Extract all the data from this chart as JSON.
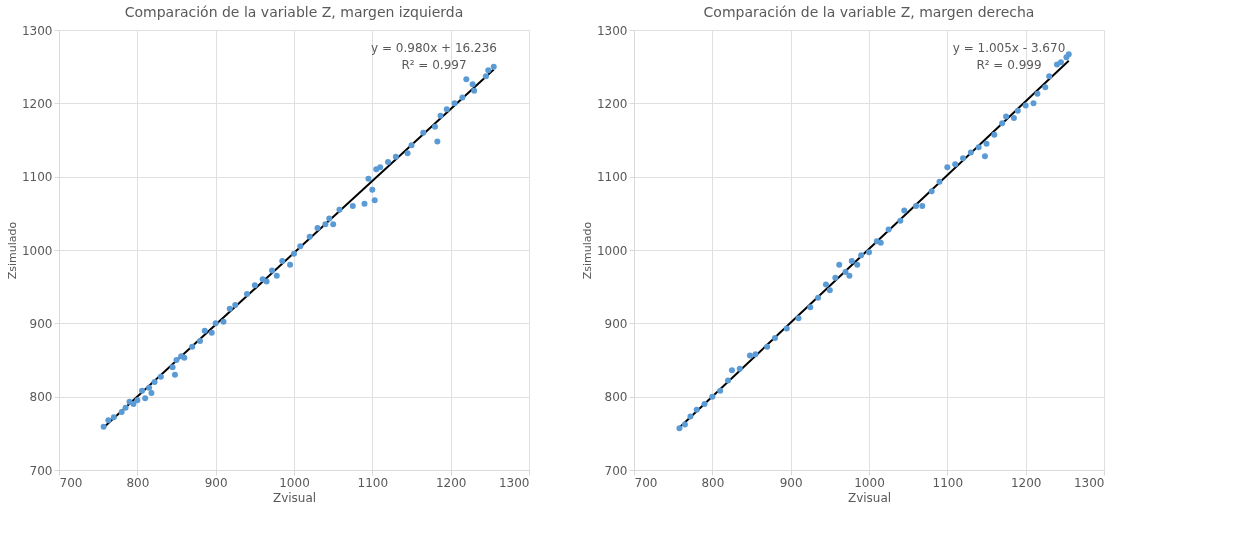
{
  "chart_data": [
    {
      "type": "scatter",
      "title": "Comparación de la variable Z, margen izquierda",
      "xlabel": "Zvisual",
      "ylabel": "Zsimulado",
      "xlim": [
        700,
        1300
      ],
      "xticks": [
        700,
        800,
        900,
        1000,
        1100,
        1200,
        1300
      ],
      "ylim": [
        700,
        1300
      ],
      "yticks": [
        700,
        800,
        900,
        1000,
        1100,
        1200,
        1300
      ],
      "grid": true,
      "marker": "circle",
      "annotations": [
        "y = 0.980x + 16.236",
        "R² = 0.997"
      ],
      "series": [
        {
          "color": "#5b9bd5",
          "x": [
            757,
            763,
            770,
            780,
            785,
            790,
            795,
            800,
            806,
            810,
            815,
            818,
            822,
            830,
            845,
            848,
            850,
            856,
            860,
            870,
            880,
            886,
            895,
            900,
            910,
            918,
            925,
            940,
            950,
            960,
            965,
            972,
            978,
            985,
            995,
            1000,
            1008,
            1020,
            1030,
            1040,
            1045,
            1050,
            1058,
            1075,
            1090,
            1095,
            1100,
            1103,
            1105,
            1110,
            1120,
            1130,
            1145,
            1150,
            1165,
            1180,
            1183,
            1187,
            1195,
            1205,
            1215,
            1220,
            1228,
            1230,
            1245,
            1248,
            1255
          ],
          "values": [
            759,
            768,
            772,
            779,
            785,
            793,
            790,
            795,
            808,
            798,
            812,
            805,
            820,
            827,
            840,
            830,
            850,
            855,
            853,
            868,
            876,
            890,
            887,
            900,
            902,
            920,
            925,
            940,
            952,
            960,
            957,
            972,
            965,
            985,
            980,
            995,
            1005,
            1018,
            1030,
            1035,
            1043,
            1035,
            1055,
            1060,
            1063,
            1097,
            1082,
            1068,
            1110,
            1113,
            1120,
            1127,
            1132,
            1143,
            1160,
            1168,
            1148,
            1183,
            1192,
            1200,
            1208,
            1233,
            1226,
            1217,
            1237,
            1245,
            1250
          ]
        },
        {
          "type": "line",
          "marker": "none",
          "color": "#000000",
          "x": [
            757,
            1255
          ],
          "values": [
            758,
            1246
          ]
        }
      ]
    },
    {
      "type": "scatter",
      "title": "Comparación de la variable Z, margen derecha",
      "xlabel": "Zvisual",
      "ylabel": "Zsimulado",
      "xlim": [
        700,
        1300
      ],
      "xticks": [
        700,
        800,
        900,
        1000,
        1100,
        1200,
        1300
      ],
      "ylim": [
        700,
        1300
      ],
      "yticks": [
        700,
        800,
        900,
        1000,
        1100,
        1200,
        1300
      ],
      "grid": true,
      "marker": "circle",
      "annotations": [
        "y = 1.005x - 3.670",
        "R² = 0.999"
      ],
      "series": [
        {
          "color": "#5b9bd5",
          "x": [
            758,
            765,
            772,
            780,
            790,
            800,
            810,
            820,
            825,
            835,
            848,
            855,
            870,
            880,
            895,
            910,
            925,
            935,
            945,
            950,
            957,
            962,
            970,
            975,
            978,
            985,
            990,
            1000,
            1010,
            1015,
            1025,
            1040,
            1045,
            1060,
            1068,
            1080,
            1090,
            1100,
            1110,
            1120,
            1130,
            1140,
            1148,
            1150,
            1160,
            1170,
            1175,
            1185,
            1190,
            1200,
            1210,
            1215,
            1225,
            1230,
            1240,
            1245,
            1252,
            1255
          ],
          "values": [
            757,
            762,
            773,
            782,
            790,
            800,
            808,
            822,
            836,
            838,
            856,
            858,
            868,
            880,
            893,
            907,
            922,
            935,
            953,
            945,
            962,
            980,
            970,
            965,
            985,
            980,
            993,
            997,
            1012,
            1010,
            1028,
            1040,
            1054,
            1060,
            1060,
            1080,
            1093,
            1113,
            1117,
            1125,
            1133,
            1140,
            1128,
            1145,
            1157,
            1173,
            1182,
            1180,
            1190,
            1197,
            1200,
            1213,
            1222,
            1237,
            1253,
            1256,
            1263,
            1267
          ]
        },
        {
          "type": "line",
          "marker": "none",
          "color": "#000000",
          "x": [
            757,
            1255
          ],
          "values": [
            757,
            1258
          ]
        }
      ]
    }
  ]
}
